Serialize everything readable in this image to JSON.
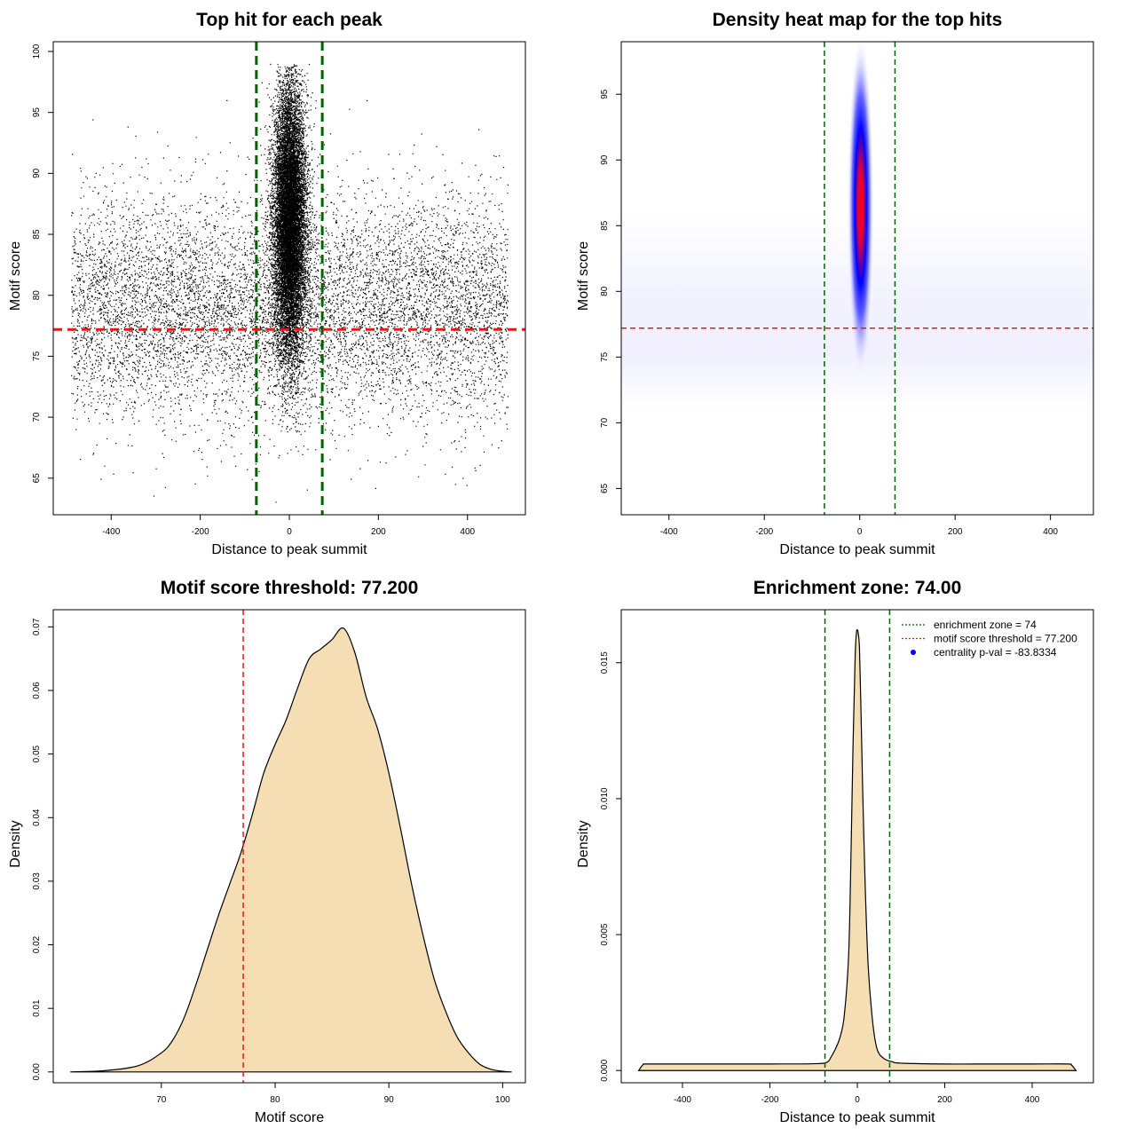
{
  "chart_data": [
    {
      "type": "scatter",
      "title": "Top hit for each peak",
      "xlabel": "Distance to peak summit",
      "ylabel": "Motif score",
      "xlim": [
        -530,
        530
      ],
      "ylim": [
        62,
        100.8
      ],
      "xticks": [
        -400,
        -200,
        0,
        200,
        400
      ],
      "yticks": [
        65,
        70,
        75,
        80,
        85,
        90,
        95,
        100
      ],
      "grid": false,
      "reference_lines": [
        {
          "orientation": "vertical",
          "value": -74,
          "color": "#006400",
          "style": "dashed"
        },
        {
          "orientation": "vertical",
          "value": 74,
          "color": "#006400",
          "style": "dashed"
        },
        {
          "orientation": "horizontal",
          "value": 77.2,
          "color": "#e31a1c",
          "style": "dashed"
        }
      ],
      "point_color": "#000000",
      "distribution": {
        "background": {
          "x_range": [
            -490,
            490
          ],
          "y_mean": 79,
          "y_sd": 4.5
        },
        "central": {
          "x_mean": 0,
          "x_sd": 18,
          "y_mean": 86,
          "y_sd": 5.5
        }
      }
    },
    {
      "type": "heatmap",
      "title": "Density heat map for the top hits",
      "xlabel": "Distance to peak summit",
      "ylabel": "Motif score",
      "xlim": [
        -500,
        490
      ],
      "ylim": [
        63,
        99
      ],
      "xticks": [
        -400,
        -200,
        0,
        200,
        400
      ],
      "yticks": [
        65,
        70,
        75,
        80,
        85,
        90,
        95
      ],
      "grid": false,
      "reference_lines": [
        {
          "orientation": "vertical",
          "value": -74,
          "color": "#006400",
          "style": "dashed"
        },
        {
          "orientation": "vertical",
          "value": 74,
          "color": "#006400",
          "style": "dashed"
        },
        {
          "orientation": "horizontal",
          "value": 77.2,
          "color": "#e31a1c",
          "style": "dashed"
        }
      ],
      "colors": [
        "#ffffff",
        "#0000ff",
        "#ff0000"
      ],
      "hotspot": {
        "x": 2,
        "y": 86.5,
        "x_sd": 11,
        "y_sd": 5
      }
    },
    {
      "type": "area",
      "title": "Motif score threshold: 77.200",
      "xlabel": "Motif score",
      "ylabel": "Density",
      "xlim": [
        60.5,
        102
      ],
      "ylim": [
        -0.0017,
        0.0727
      ],
      "xticks": [
        70,
        80,
        90,
        100
      ],
      "yticks": [
        0.0,
        0.01,
        0.02,
        0.03,
        0.04,
        0.05,
        0.06,
        0.07
      ],
      "ytick_labels": [
        "0.00",
        "0.01",
        "0.02",
        "0.03",
        "0.04",
        "0.05",
        "0.06",
        "0.07"
      ],
      "fill_color": "#f5deb3",
      "line_color": "#000000",
      "reference_lines": [
        {
          "orientation": "vertical",
          "value": 77.2,
          "color": "#e31a1c",
          "style": "dashed"
        }
      ],
      "x": [
        62,
        65,
        68,
        70,
        71,
        72,
        73,
        74,
        75,
        76,
        77,
        78,
        79,
        80,
        81,
        82,
        83,
        84,
        85,
        86,
        87,
        88,
        89,
        90,
        91,
        92,
        93,
        94,
        95,
        96,
        97,
        98,
        99,
        100,
        100.8
      ],
      "y": [
        0.0,
        0.0002,
        0.001,
        0.003,
        0.005,
        0.0085,
        0.0135,
        0.019,
        0.0245,
        0.0295,
        0.0345,
        0.0405,
        0.047,
        0.0515,
        0.0555,
        0.0605,
        0.065,
        0.0665,
        0.068,
        0.0698,
        0.066,
        0.059,
        0.054,
        0.047,
        0.0385,
        0.0295,
        0.0215,
        0.0145,
        0.0095,
        0.0055,
        0.003,
        0.0012,
        0.0004,
        0.0001,
        0.0
      ]
    },
    {
      "type": "area",
      "title": "Enrichment zone: 74.00",
      "xlabel": "Distance to peak summit",
      "ylabel": "Density",
      "xlim": [
        -540,
        540
      ],
      "ylim": [
        -0.00045,
        0.01695
      ],
      "xticks": [
        -400,
        -200,
        0,
        200,
        400
      ],
      "yticks": [
        0.0,
        0.005,
        0.01,
        0.015
      ],
      "ytick_labels": [
        "0.000",
        "0.005",
        "0.010",
        "0.015"
      ],
      "fill_color": "#f5deb3",
      "line_color": "#000000",
      "reference_lines": [
        {
          "orientation": "vertical",
          "value": -74,
          "color": "#006400",
          "style": "dashed"
        },
        {
          "orientation": "vertical",
          "value": 74,
          "color": "#006400",
          "style": "dashed"
        }
      ],
      "x": [
        -500,
        -490,
        -480,
        -400,
        -300,
        -200,
        -100,
        -70,
        -60,
        -50,
        -40,
        -30,
        -20,
        -15,
        -10,
        -5,
        -2,
        0,
        2,
        5,
        8,
        12,
        18,
        25,
        35,
        45,
        60,
        80,
        100,
        200,
        300,
        400,
        480,
        490,
        500
      ],
      "y": [
        0.0,
        0.00022,
        0.00024,
        0.00024,
        0.00024,
        0.00024,
        0.00025,
        0.0003,
        0.0005,
        0.0008,
        0.0012,
        0.002,
        0.0042,
        0.0075,
        0.0118,
        0.0152,
        0.0161,
        0.0162,
        0.0161,
        0.0155,
        0.0135,
        0.0105,
        0.0068,
        0.0038,
        0.0018,
        0.0008,
        0.00045,
        0.00032,
        0.00027,
        0.00024,
        0.00024,
        0.00024,
        0.00024,
        0.0002,
        0.0
      ],
      "legend": {
        "placement": "top-right",
        "entries": [
          {
            "label": "enrichment zone = 74",
            "color": "#006400",
            "style": "dotted-line"
          },
          {
            "label": "motif score threshold = 77.200",
            "color": "#e31a1c",
            "style": "dotted-line"
          },
          {
            "label": "centrality p-val = -83.8334",
            "color": "#0000ff",
            "style": "point"
          }
        ]
      }
    }
  ]
}
